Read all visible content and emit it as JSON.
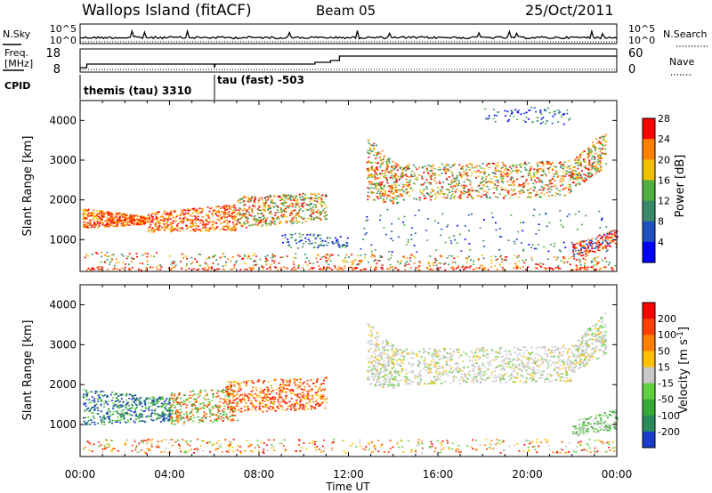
{
  "header": {
    "site": "Wallops Island (fitACF)",
    "beam": "Beam 05",
    "date": "25/Oct/2011"
  },
  "strips": {
    "nsky_label": "N.Sky",
    "nsky_ticks": [
      "10^5",
      "10^0"
    ],
    "nsearch_label": "N.Search",
    "nsearch_ticks": [
      "10^5",
      "10^0"
    ],
    "freq_label_1": "Freq.",
    "freq_label_2": "[MHz]",
    "freq_ticks": [
      "18",
      "8"
    ],
    "nave_label": "Nave",
    "nave_ticks": [
      "60",
      "0"
    ],
    "cpid_label": "CPID",
    "cpid_segments": [
      {
        "label": "themis (tau) 3310",
        "start_hour": 0,
        "end_hour": 6
      },
      {
        "label": "tau (fast) -503",
        "start_hour": 6,
        "end_hour": 24
      }
    ]
  },
  "chart_data": [
    {
      "type": "heatmap",
      "name": "power",
      "ylabel": "Slant Range [km]",
      "xlim": [
        0,
        24
      ],
      "ylim": [
        200,
        4500
      ],
      "yticks": [
        "1000",
        "2000",
        "3000",
        "4000"
      ],
      "colorbar": {
        "label": "Power [dB]",
        "ticks": [
          "4",
          "8",
          "12",
          "16",
          "20",
          "24",
          "28"
        ],
        "colors": [
          "#0000ff",
          "#2050c0",
          "#3a8a6a",
          "#50b040",
          "#f0c000",
          "#ff8000",
          "#ff0000"
        ]
      }
    },
    {
      "type": "heatmap",
      "name": "velocity",
      "ylabel": "Slant Range [km]",
      "xlabel": "Time UT",
      "xlim": [
        0,
        24
      ],
      "ylim": [
        200,
        4500
      ],
      "yticks": [
        "1000",
        "2000",
        "3000",
        "4000"
      ],
      "xticks": [
        "00:00",
        "04:00",
        "08:00",
        "12:00",
        "16:00",
        "20:00",
        "00:00"
      ],
      "colorbar": {
        "label": "Velocity [m s",
        "label_sup": "-1",
        "label_end": "]",
        "ticks": [
          "200",
          "100",
          "50",
          "15",
          "-15",
          "-50",
          "-100",
          "-200"
        ],
        "colors": [
          "#1a3cc8",
          "#2a8a5a",
          "#38a838",
          "#60d040",
          "#c8c8c8",
          "#ffc000",
          "#ff8000",
          "#ff4000",
          "#ff0000"
        ]
      }
    }
  ]
}
